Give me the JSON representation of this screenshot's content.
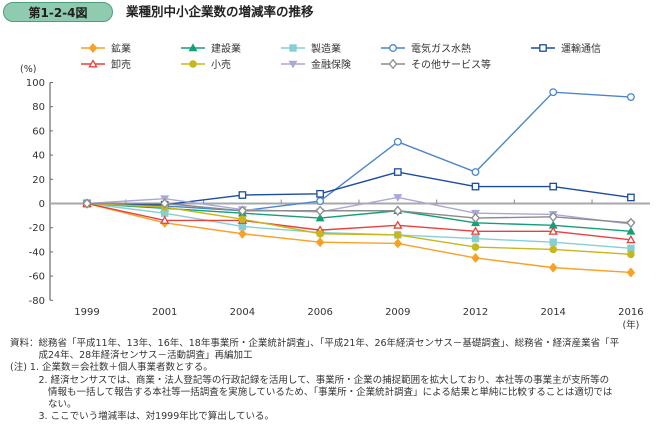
{
  "header": {
    "figure_number": "第1-2-4図",
    "title": "業種別中小企業数の増減率の推移"
  },
  "chart_data": {
    "type": "line",
    "title": "業種別中小企業数の増減率の推移",
    "xlabel": "(年)",
    "ylabel": "(%)",
    "ylim": [
      -80,
      100
    ],
    "yticks": [
      100,
      80,
      60,
      40,
      20,
      0,
      -20,
      -40,
      -60,
      -80
    ],
    "categories": [
      "1999",
      "2001",
      "2004",
      "2006",
      "2009",
      "2012",
      "2014",
      "2016"
    ],
    "legend_position": "top",
    "series": [
      {
        "name": "鉱業",
        "color": "#f7a128",
        "marker": "diamond-filled",
        "values": [
          0,
          -16,
          -25,
          -32,
          -33,
          -45,
          -53,
          -57
        ]
      },
      {
        "name": "建設業",
        "color": "#159f77",
        "marker": "triangle-filled",
        "values": [
          0,
          -4,
          -8,
          -12,
          -6,
          -16,
          -18,
          -23
        ]
      },
      {
        "name": "製造業",
        "color": "#86cfd4",
        "marker": "square-filled",
        "values": [
          0,
          -8,
          -19,
          -24,
          -26,
          -29,
          -32,
          -37
        ]
      },
      {
        "name": "電気ガス水熱",
        "color": "#4a86cc",
        "marker": "circle-open",
        "values": [
          0,
          -2,
          -6,
          2,
          51,
          26,
          92,
          88
        ]
      },
      {
        "name": "運輸通信",
        "color": "#1b4ca1",
        "marker": "square-open",
        "values": [
          0,
          -1,
          7,
          8,
          26,
          14,
          14,
          5
        ]
      },
      {
        "name": "卸売",
        "color": "#e8403d",
        "marker": "triangle-open",
        "values": [
          0,
          -14,
          -14,
          -22,
          -18,
          -23,
          -23,
          -30
        ]
      },
      {
        "name": "小売",
        "color": "#c6b81c",
        "marker": "circle-filled",
        "values": [
          0,
          -3,
          -13,
          -25,
          -26,
          -36,
          -38,
          -42
        ]
      },
      {
        "name": "金融保険",
        "color": "#a9a8d8",
        "marker": "triangle-down-filled",
        "values": [
          0,
          4,
          -5,
          -7,
          5,
          -8,
          -9,
          -17
        ]
      },
      {
        "name": "その他サービス等",
        "color": "#8c8c8c",
        "marker": "diamond-open",
        "values": [
          0,
          0,
          -6,
          -6,
          -6,
          -12,
          -11,
          -16
        ]
      }
    ]
  },
  "legend_rows": [
    [
      "鉱業",
      "建設業",
      "製造業",
      "電気ガス水熱",
      "運輸通信"
    ],
    [
      "卸売",
      "小売",
      "金融保険",
      "その他サービス等"
    ]
  ],
  "notes": [
    "資料：総務省「平成11年、13年、16年、18年事業所・企業統計調査」、「平成21年、26年経済センサス－基礎調査」、総務省・経済産業省「平",
    "　　　成24年、28年経済センサス－活動調査」再編加工",
    "(注) 1. 企業数＝会社数＋個人事業者数とする。",
    "　　　2. 経済センサスでは、商業・法人登記等の行政記録を活用して、事業所・企業の捕捉範囲を拡大しており、本社等の事業主が支所等の",
    "　　　　情報も一括して報告する本社等一括調査を実施しているため、「事業所・企業統計調査」による結果と単純に比較することは適切では",
    "　　　　ない。",
    "　　　3. ここでいう増減率は、対1999年比で算出している。"
  ]
}
